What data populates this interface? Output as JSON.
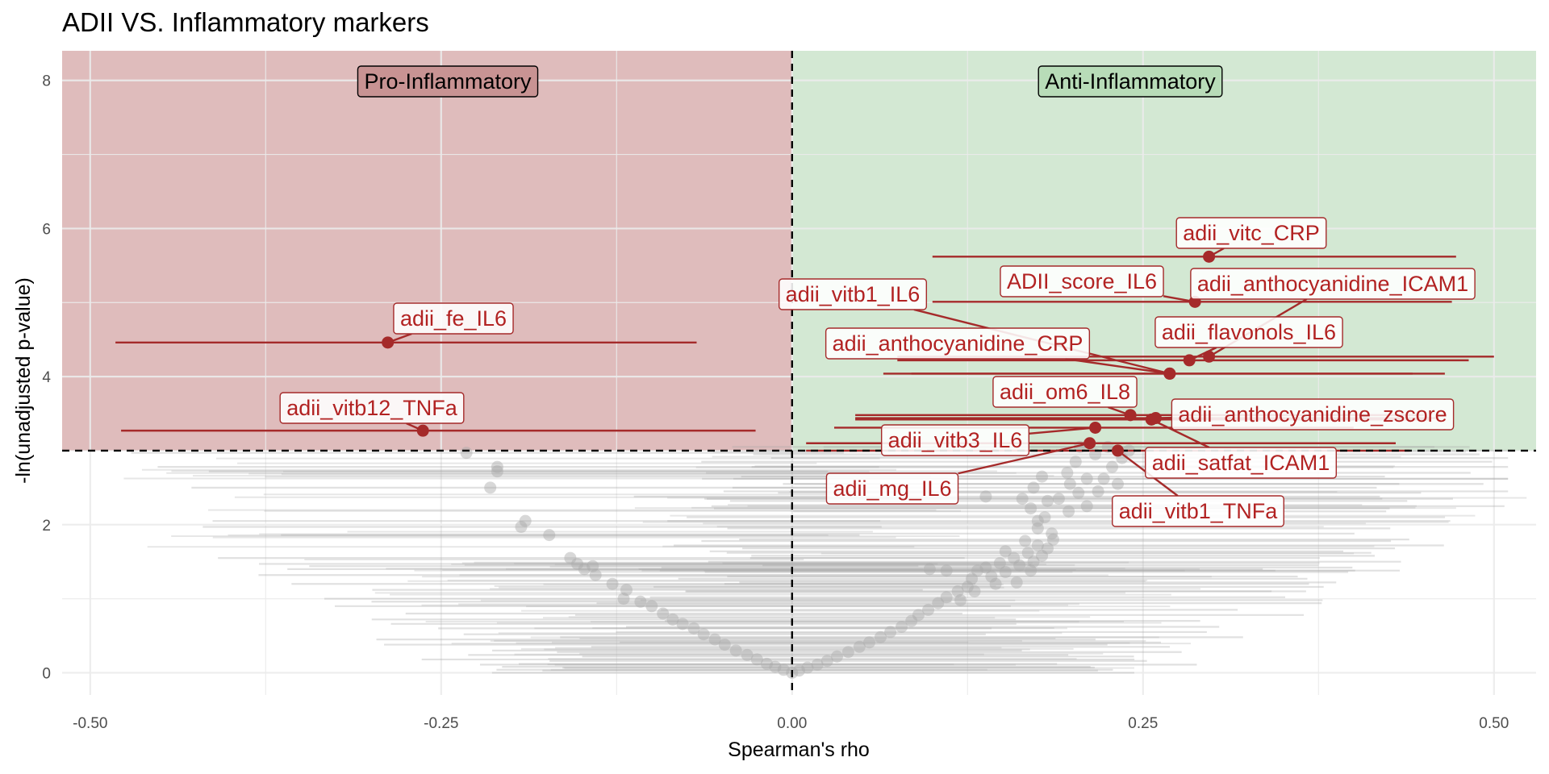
{
  "colors": {
    "highlight": "#a52a2a",
    "label_text": "#b22222",
    "background_points": "#a9a9a9",
    "pro_zone": "#c07a7a",
    "anti_zone": "#a8d2a8",
    "grid": "#ebebeb"
  },
  "chart_data": {
    "type": "scatter",
    "title": "ADII VS. Inflammatory markers",
    "xlabel": "Spearman's rho",
    "ylabel": "-ln(unadjusted p-value)",
    "xlim": [
      -0.52,
      0.53
    ],
    "ylim": [
      -0.3,
      8.4
    ],
    "x_ticks": [
      -0.5,
      -0.25,
      0.0,
      0.25,
      0.5
    ],
    "x_tick_labels": [
      "-0.50",
      "-0.25",
      "0.00",
      "0.25",
      "0.50"
    ],
    "y_ticks": [
      0,
      2,
      4,
      6,
      8
    ],
    "y_tick_labels": [
      "0",
      "2",
      "4",
      "6",
      "8"
    ],
    "threshold_x": 0.0,
    "threshold_y": 3.0,
    "grid": true,
    "zones": [
      {
        "label": "Pro-Inflammatory",
        "x_range": [
          -0.52,
          0.0
        ],
        "y_range": [
          3.0,
          8.4
        ]
      },
      {
        "label": "Anti-Inflammatory",
        "x_range": [
          0.0,
          0.53
        ],
        "y_range": [
          3.0,
          8.4
        ]
      }
    ],
    "highlighted_points": [
      {
        "label": "adii_vitc_CRP",
        "x": 0.297,
        "y": 5.62,
        "ci": [
          0.1,
          0.473
        ]
      },
      {
        "label": "ADII_score_IL6",
        "x": 0.287,
        "y": 5.01,
        "ci": [
          0.1,
          0.47
        ]
      },
      {
        "label": "adii_anthocyanidine_ICAM1",
        "x": 0.297,
        "y": 4.27,
        "ci": [
          0.075,
          0.5
        ]
      },
      {
        "label": "adii_vitb1_IL6",
        "x": 0.269,
        "y": 4.04,
        "ci": [
          0.065,
          0.465
        ]
      },
      {
        "label": "adii_flavonols_IL6",
        "x": 0.283,
        "y": 4.22,
        "ci": [
          0.075,
          0.482
        ]
      },
      {
        "label": "adii_anthocyanidine_CRP",
        "x": 0.269,
        "y": 4.04,
        "ci": [
          0.085,
          0.442
        ]
      },
      {
        "label": "adii_om6_IL8",
        "x": 0.241,
        "y": 3.48,
        "ci": [
          0.045,
          0.45
        ]
      },
      {
        "label": "adii_anthocyanidine_zscore",
        "x": 0.259,
        "y": 3.44,
        "ci": [
          0.045,
          0.46
        ]
      },
      {
        "label": "adii_satfat_ICAM1",
        "x": 0.256,
        "y": 3.42,
        "ci": [
          0.045,
          0.455
        ]
      },
      {
        "label": "adii_vitb3_IL6",
        "x": 0.216,
        "y": 3.31,
        "ci": [
          0.03,
          0.4
        ]
      },
      {
        "label": "adii_mg_IL6",
        "x": 0.212,
        "y": 3.1,
        "ci": [
          0.01,
          0.43
        ]
      },
      {
        "label": "adii_vitb1_TNFa",
        "x": 0.232,
        "y": 3.0,
        "ci": [
          0.01,
          0.44
        ]
      },
      {
        "label": "adii_fe_IL6",
        "x": -0.288,
        "y": 4.46,
        "ci": [
          -0.482,
          -0.068
        ]
      },
      {
        "label": "adii_vitb12_TNFa",
        "x": -0.263,
        "y": 3.27,
        "ci": [
          -0.478,
          -0.026
        ]
      }
    ],
    "background_points": [
      {
        "x": -0.232,
        "y": 2.97
      },
      {
        "x": -0.21,
        "y": 2.78
      },
      {
        "x": -0.21,
        "y": 2.72
      },
      {
        "x": -0.215,
        "y": 2.5
      },
      {
        "x": -0.19,
        "y": 2.05
      },
      {
        "x": -0.193,
        "y": 1.97
      },
      {
        "x": -0.173,
        "y": 1.86
      },
      {
        "x": -0.158,
        "y": 1.55
      },
      {
        "x": -0.153,
        "y": 1.47
      },
      {
        "x": -0.148,
        "y": 1.4
      },
      {
        "x": -0.142,
        "y": 1.44
      },
      {
        "x": -0.14,
        "y": 1.32
      },
      {
        "x": -0.128,
        "y": 1.2
      },
      {
        "x": -0.118,
        "y": 1.12
      },
      {
        "x": -0.12,
        "y": 1.0
      },
      {
        "x": -0.108,
        "y": 0.96
      },
      {
        "x": -0.1,
        "y": 0.9
      },
      {
        "x": -0.092,
        "y": 0.8
      },
      {
        "x": -0.085,
        "y": 0.72
      },
      {
        "x": -0.078,
        "y": 0.66
      },
      {
        "x": -0.07,
        "y": 0.6
      },
      {
        "x": -0.063,
        "y": 0.52
      },
      {
        "x": -0.055,
        "y": 0.45
      },
      {
        "x": -0.048,
        "y": 0.38
      },
      {
        "x": -0.04,
        "y": 0.3
      },
      {
        "x": -0.032,
        "y": 0.24
      },
      {
        "x": -0.025,
        "y": 0.18
      },
      {
        "x": -0.018,
        "y": 0.12
      },
      {
        "x": -0.012,
        "y": 0.08
      },
      {
        "x": -0.006,
        "y": 0.04
      },
      {
        "x": 0.0,
        "y": 0.0
      },
      {
        "x": 0.005,
        "y": 0.03
      },
      {
        "x": 0.011,
        "y": 0.07
      },
      {
        "x": 0.018,
        "y": 0.11
      },
      {
        "x": 0.025,
        "y": 0.16
      },
      {
        "x": 0.032,
        "y": 0.22
      },
      {
        "x": 0.04,
        "y": 0.28
      },
      {
        "x": 0.048,
        "y": 0.35
      },
      {
        "x": 0.055,
        "y": 0.41
      },
      {
        "x": 0.063,
        "y": 0.48
      },
      {
        "x": 0.07,
        "y": 0.55
      },
      {
        "x": 0.078,
        "y": 0.62
      },
      {
        "x": 0.085,
        "y": 0.7
      },
      {
        "x": 0.09,
        "y": 0.78
      },
      {
        "x": 0.097,
        "y": 0.85
      },
      {
        "x": 0.104,
        "y": 0.94
      },
      {
        "x": 0.11,
        "y": 1.02
      },
      {
        "x": 0.118,
        "y": 1.1
      },
      {
        "x": 0.125,
        "y": 1.16
      },
      {
        "x": 0.128,
        "y": 1.27
      },
      {
        "x": 0.132,
        "y": 1.38
      },
      {
        "x": 0.138,
        "y": 1.42
      },
      {
        "x": 0.142,
        "y": 1.3
      },
      {
        "x": 0.148,
        "y": 1.48
      },
      {
        "x": 0.152,
        "y": 1.36
      },
      {
        "x": 0.158,
        "y": 1.55
      },
      {
        "x": 0.162,
        "y": 1.45
      },
      {
        "x": 0.168,
        "y": 1.62
      },
      {
        "x": 0.17,
        "y": 1.38
      },
      {
        "x": 0.172,
        "y": 1.5
      },
      {
        "x": 0.175,
        "y": 1.72
      },
      {
        "x": 0.178,
        "y": 1.58
      },
      {
        "x": 0.182,
        "y": 1.68
      },
      {
        "x": 0.186,
        "y": 1.8
      },
      {
        "x": 0.175,
        "y": 1.95
      },
      {
        "x": 0.18,
        "y": 2.1
      },
      {
        "x": 0.17,
        "y": 2.22
      },
      {
        "x": 0.164,
        "y": 2.35
      },
      {
        "x": 0.172,
        "y": 2.5
      },
      {
        "x": 0.178,
        "y": 2.65
      },
      {
        "x": 0.19,
        "y": 2.35
      },
      {
        "x": 0.198,
        "y": 2.55
      },
      {
        "x": 0.204,
        "y": 2.43
      },
      {
        "x": 0.196,
        "y": 2.7
      },
      {
        "x": 0.202,
        "y": 2.85
      },
      {
        "x": 0.21,
        "y": 2.25
      },
      {
        "x": 0.218,
        "y": 2.45
      },
      {
        "x": 0.222,
        "y": 2.62
      },
      {
        "x": 0.228,
        "y": 2.78
      },
      {
        "x": 0.235,
        "y": 2.9
      },
      {
        "x": 0.216,
        "y": 2.95
      },
      {
        "x": 0.225,
        "y": 3.05
      },
      {
        "x": 0.11,
        "y": 1.38
      },
      {
        "x": 0.098,
        "y": 1.4
      },
      {
        "x": 0.145,
        "y": 1.2
      },
      {
        "x": 0.13,
        "y": 1.1
      },
      {
        "x": 0.12,
        "y": 0.98
      },
      {
        "x": 0.138,
        "y": 2.38
      },
      {
        "x": 0.16,
        "y": 1.22
      },
      {
        "x": 0.175,
        "y": 2.05
      },
      {
        "x": 0.185,
        "y": 1.88
      },
      {
        "x": 0.152,
        "y": 1.64
      },
      {
        "x": 0.166,
        "y": 1.78
      },
      {
        "x": 0.182,
        "y": 2.32
      },
      {
        "x": 0.197,
        "y": 2.18
      },
      {
        "x": 0.21,
        "y": 2.62
      },
      {
        "x": 0.232,
        "y": 2.55
      },
      {
        "x": 0.24,
        "y": 3.0
      },
      {
        "x": 0.205,
        "y": 3.05
      }
    ],
    "background_ci_spread": [
      -0.12,
      0.4
    ]
  }
}
